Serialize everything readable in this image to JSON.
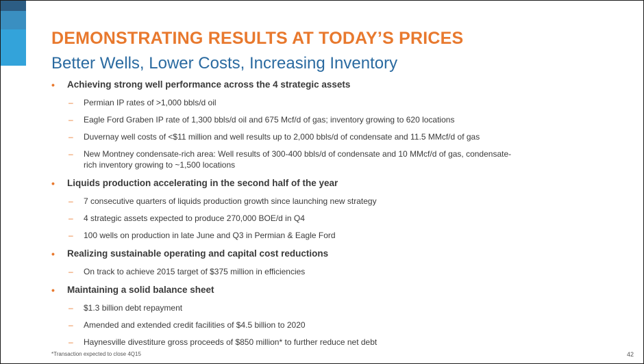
{
  "slide": {
    "title": "DEMONSTRATING RESULTS AT TODAY’S PRICES",
    "subtitle": "Better Wells, Lower Costs, Increasing Inventory",
    "footnote": "*Transaction expected to close 4Q15",
    "page_number": "42",
    "colors": {
      "title": "#e8792e",
      "subtitle": "#2a6aa0",
      "bullet_marker": "#e8792e",
      "accent_dark": "#2c5d84",
      "accent_mid": "#3a8fc1",
      "accent_light": "#33a3da"
    }
  },
  "bullets": [
    {
      "text": "Achieving strong well performance across the 4 strategic assets",
      "subs": [
        "Permian IP rates of >1,000 bbls/d oil",
        "Eagle Ford Graben IP rate of 1,300 bbls/d oil and 675 Mcf/d of gas; inventory growing to 620 locations",
        "Duvernay well costs of <$11 million and well results up to 2,000 bbls/d of condensate and 11.5 MMcf/d of gas",
        "New Montney condensate-rich area: Well results of 300-400 bbls/d of condensate and 10 MMcf/d of gas, condensate-rich inventory growing to ~1,500 locations"
      ]
    },
    {
      "text": "Liquids production accelerating in the second half of the year",
      "subs": [
        "7 consecutive quarters of liquids production growth since launching new strategy",
        "4 strategic assets expected to produce 270,000 BOE/d in Q4",
        "100 wells on production in late June and Q3 in Permian & Eagle Ford"
      ]
    },
    {
      "text": "Realizing sustainable operating and capital cost reductions",
      "subs": [
        "On track to achieve 2015 target of $375 million in efficiencies"
      ]
    },
    {
      "text": "Maintaining a solid balance sheet",
      "subs": [
        "$1.3 billion debt repayment",
        "Amended and extended credit facilities of $4.5 billion to 2020",
        "Haynesville divestiture gross proceeds of $850 million* to further reduce net debt"
      ]
    }
  ]
}
